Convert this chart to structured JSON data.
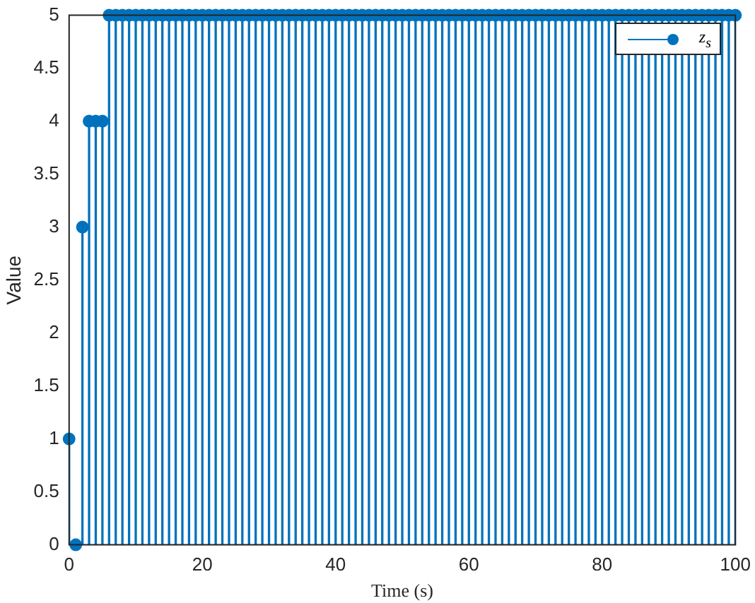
{
  "chart_data": {
    "type": "lollipop",
    "xlabel": "Time (s)",
    "ylabel": "Value",
    "x": [
      0,
      1,
      2,
      3,
      4,
      5,
      6,
      7,
      8,
      9,
      10,
      11,
      12,
      13,
      14,
      15,
      16,
      17,
      18,
      19,
      20,
      21,
      22,
      23,
      24,
      25,
      26,
      27,
      28,
      29,
      30,
      31,
      32,
      33,
      34,
      35,
      36,
      37,
      38,
      39,
      40,
      41,
      42,
      43,
      44,
      45,
      46,
      47,
      48,
      49,
      50,
      51,
      52,
      53,
      54,
      55,
      56,
      57,
      58,
      59,
      60,
      61,
      62,
      63,
      64,
      65,
      66,
      67,
      68,
      69,
      70,
      71,
      72,
      73,
      74,
      75,
      76,
      77,
      78,
      79,
      80,
      81,
      82,
      83,
      84,
      85,
      86,
      87,
      88,
      89,
      90,
      91,
      92,
      93,
      94,
      95,
      96,
      97,
      98,
      99,
      100
    ],
    "series": [
      {
        "name": "z$_{s}$",
        "color": "#0072bd",
        "values": [
          1,
          0,
          3,
          4,
          4,
          4,
          5,
          5,
          5,
          5,
          5,
          5,
          5,
          5,
          5,
          5,
          5,
          5,
          5,
          5,
          5,
          5,
          5,
          5,
          5,
          5,
          5,
          5,
          5,
          5,
          5,
          5,
          5,
          5,
          5,
          5,
          5,
          5,
          5,
          5,
          5,
          5,
          5,
          5,
          5,
          5,
          5,
          5,
          5,
          5,
          5,
          5,
          5,
          5,
          5,
          5,
          5,
          5,
          5,
          5,
          5,
          5,
          5,
          5,
          5,
          5,
          5,
          5,
          5,
          5,
          5,
          5,
          5,
          5,
          5,
          5,
          5,
          5,
          5,
          5,
          5,
          5,
          5,
          5,
          5,
          5,
          5,
          5,
          5,
          5,
          5,
          5,
          5,
          5,
          5,
          5,
          5,
          5,
          5,
          5,
          5
        ]
      }
    ],
    "xlim": [
      0,
      100
    ],
    "xticks": [
      0,
      20,
      40,
      60,
      80,
      100
    ],
    "ylim": [
      0,
      5
    ],
    "yticks": [
      0,
      0.5,
      1,
      1.5,
      2,
      2.5,
      3,
      3.5,
      4,
      4.5,
      5
    ],
    "grid": false,
    "legend": "top right",
    "marker": "circle"
  }
}
